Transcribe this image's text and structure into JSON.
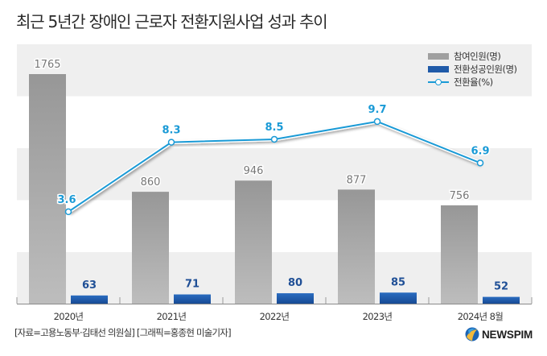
{
  "title": "최근 5년간 장애인 근로자 전환지원사업 성과 추이",
  "legend": [
    {
      "label": "참여인원(명)",
      "type": "bar",
      "color": "#a0a0a0"
    },
    {
      "label": "전환성공인원(명)",
      "type": "bar",
      "color": "#1f5aa8"
    },
    {
      "label": "전환율(%)",
      "type": "line",
      "color": "#1a9ad6"
    }
  ],
  "source": "[자료=고용노동부·김태선 의원실] [그래픽=홍종현 미술기자]",
  "logo": {
    "text": "NEWSPIM",
    "icon": "newspim-globe-icon"
  },
  "chart_data": {
    "type": "bar",
    "title": "최근 5년간 장애인 근로자 전환지원사업 성과 추이",
    "xlabel": "",
    "ylabel": "",
    "categories": [
      "2020년",
      "2021년",
      "2022년",
      "2023년",
      "2024년 8월"
    ],
    "series": [
      {
        "name": "참여인원(명)",
        "type": "bar",
        "color": "#a0a0a0",
        "values": [
          1765,
          860,
          946,
          877,
          756
        ]
      },
      {
        "name": "전환성공인원(명)",
        "type": "bar",
        "color": "#1f5aa8",
        "values": [
          63,
          71,
          80,
          85,
          52
        ]
      },
      {
        "name": "전환율(%)",
        "type": "line",
        "color": "#1a9ad6",
        "values": [
          3.6,
          8.3,
          8.5,
          9.7,
          6.9
        ]
      }
    ],
    "bar_ylim": [
      0,
      1765
    ],
    "line_ylim": [
      0,
      9.7
    ],
    "grid": "alternating horizontal bands",
    "legend_position": "top-right",
    "data_labels": true
  }
}
